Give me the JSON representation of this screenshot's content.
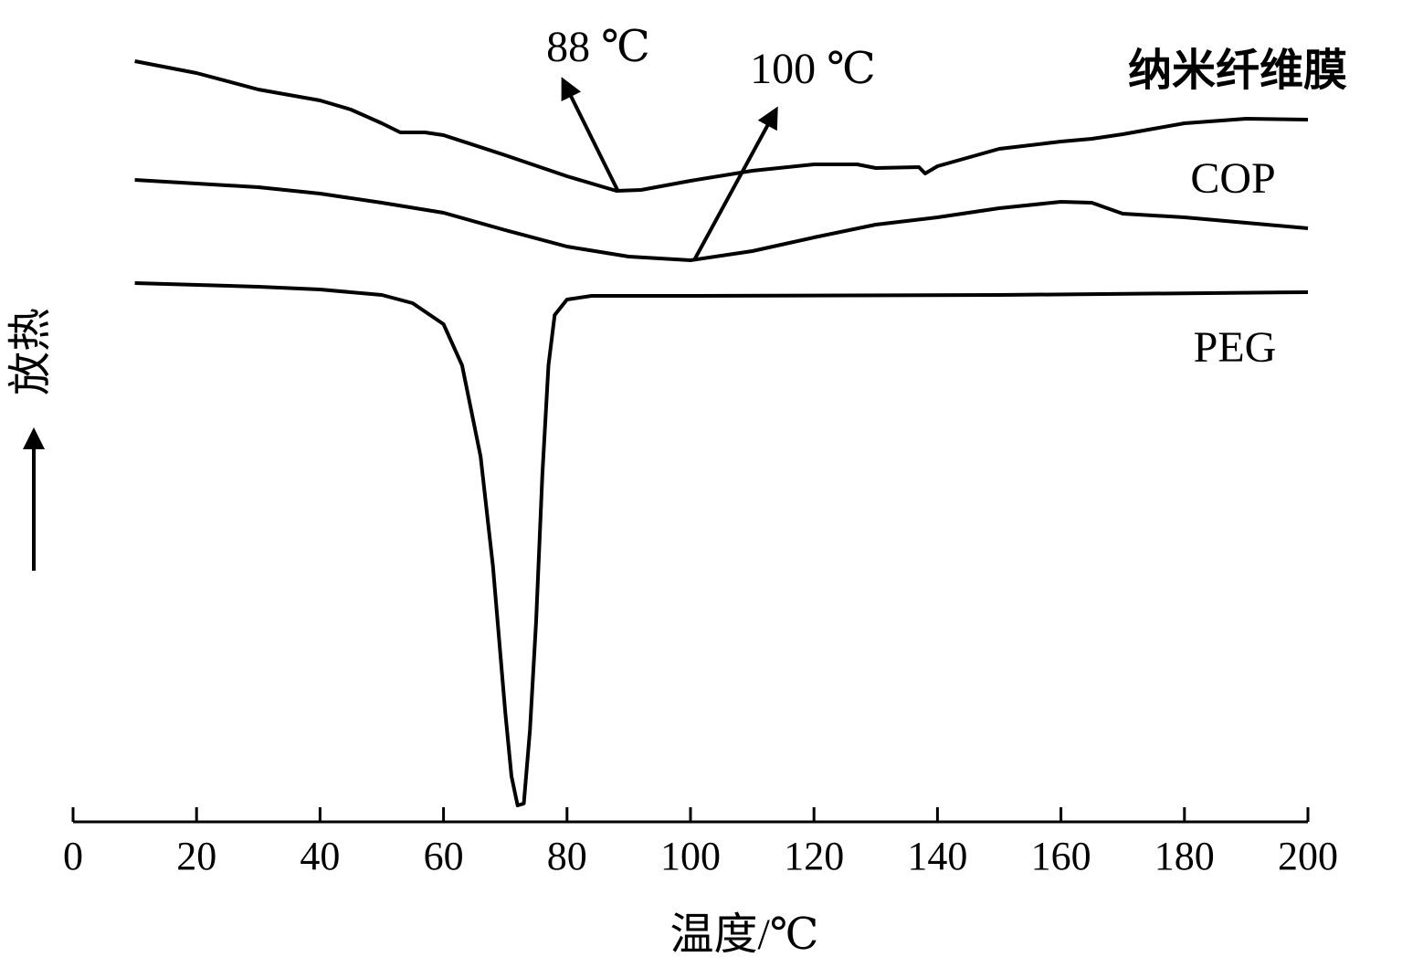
{
  "chart_data": {
    "type": "line",
    "x_label": "温度/℃",
    "y_label": "放热",
    "annotations": [
      "88 ℃",
      "100 ℃"
    ],
    "xlim": [
      0,
      200
    ],
    "xticks": [
      0,
      20,
      40,
      60,
      80,
      100,
      120,
      140,
      160,
      180,
      200
    ],
    "ylim": [
      0,
      83
    ],
    "color": "#000000",
    "series": [
      {
        "name": "纳米纤维膜",
        "color": "#000000",
        "x": [
          10,
          20,
          30,
          40,
          45,
          50,
          53,
          57,
          60,
          70,
          80,
          88,
          92,
          100,
          110,
          120,
          127,
          130,
          137,
          138,
          140,
          150,
          160,
          165,
          170,
          180,
          190,
          200
        ],
        "values": [
          82.3,
          81.0,
          79.2,
          78.0,
          77.0,
          75.5,
          74.5,
          74.5,
          74.2,
          72.0,
          69.7,
          68.1,
          68.2,
          69.2,
          70.3,
          71.0,
          71.0,
          70.6,
          70.7,
          70.0,
          70.8,
          72.7,
          73.5,
          73.8,
          74.3,
          75.5,
          76.0,
          75.9
        ]
      },
      {
        "name": "COP",
        "color": "#000000",
        "x": [
          10,
          30,
          40,
          50,
          60,
          70,
          80,
          90,
          100,
          110,
          120,
          130,
          140,
          150,
          160,
          165,
          170,
          180,
          190,
          200
        ],
        "values": [
          69.3,
          68.5,
          67.8,
          66.8,
          65.7,
          63.8,
          62.0,
          60.9,
          60.5,
          61.5,
          63.0,
          64.4,
          65.2,
          66.2,
          66.9,
          66.8,
          65.6,
          65.2,
          64.6,
          64.0
        ]
      },
      {
        "name": "PEG",
        "color": "#000000",
        "x": [
          10,
          30,
          40,
          50,
          55,
          60,
          63,
          66,
          68,
          70,
          71,
          72,
          73,
          74,
          75,
          76,
          77,
          78,
          80,
          84,
          100,
          150,
          200
        ],
        "values": [
          58.0,
          57.6,
          57.3,
          56.7,
          55.8,
          53.5,
          49.0,
          39.0,
          27.0,
          11.0,
          4.0,
          0.8,
          1.0,
          9.0,
          21.0,
          37.0,
          49.0,
          54.5,
          56.2,
          56.6,
          56.6,
          56.7,
          57.0
        ]
      }
    ]
  }
}
